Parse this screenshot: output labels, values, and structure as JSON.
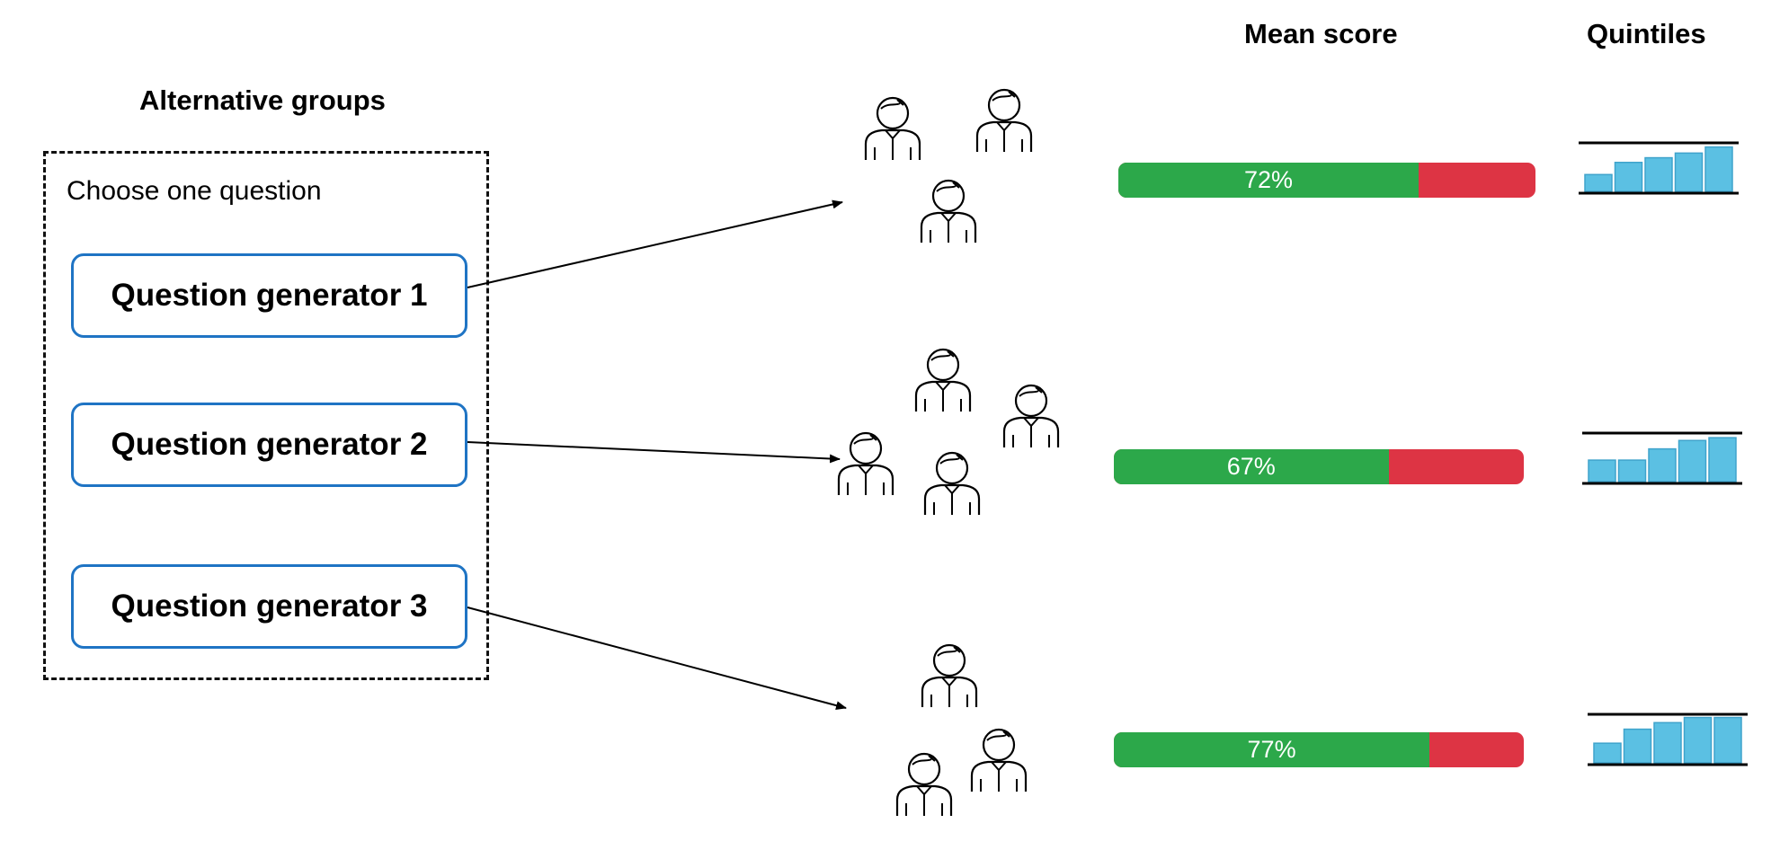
{
  "headings": {
    "alternative_groups": "Alternative groups",
    "mean_score": "Mean score",
    "quintiles": "Quintiles"
  },
  "selector": {
    "instruction": "Choose one question",
    "generators": [
      {
        "label": "Question generator 1"
      },
      {
        "label": "Question generator 2"
      },
      {
        "label": "Question generator 3"
      }
    ]
  },
  "groups": [
    {
      "people_count": 3,
      "mean_score": 0.72,
      "mean_score_label": "72%",
      "quintiles": [
        0.36,
        0.62,
        0.72,
        0.82,
        0.95
      ]
    },
    {
      "people_count": 4,
      "mean_score": 0.67,
      "mean_score_label": "67%",
      "quintiles": [
        0.46,
        0.46,
        0.7,
        0.88,
        0.94
      ]
    },
    {
      "people_count": 3,
      "mean_score": 0.77,
      "mean_score_label": "77%",
      "quintiles": [
        0.42,
        0.72,
        0.86,
        0.97,
        0.97
      ]
    }
  ],
  "colors": {
    "correct": "#2ca84a",
    "incorrect": "#dd3444",
    "generator_border": "#1f74c4",
    "quintile_bar": "#5bc0e3",
    "quintile_bar_edge": "#3fa3cc"
  },
  "icons": {
    "person": "person-icon",
    "arrow": "arrow-icon"
  }
}
